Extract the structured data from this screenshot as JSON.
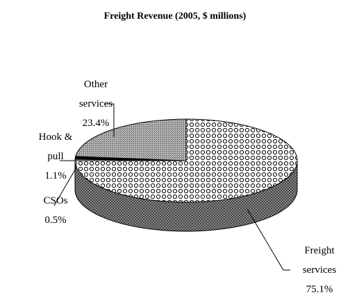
{
  "chart_data": {
    "type": "pie3d",
    "title": "Freight Revenue (2005, $ millions)",
    "categories": [
      "Freight services",
      "CSOs",
      "Hook & pull",
      "Other services"
    ],
    "values": [
      75.1,
      0.5,
      1.1,
      23.4
    ],
    "value_labels": [
      "75.1%",
      "0.5%",
      "1.1%",
      "23.4%"
    ],
    "colors": [
      "#ffffff",
      "#ffffff",
      "#000000",
      "#aaaaaa"
    ]
  }
}
